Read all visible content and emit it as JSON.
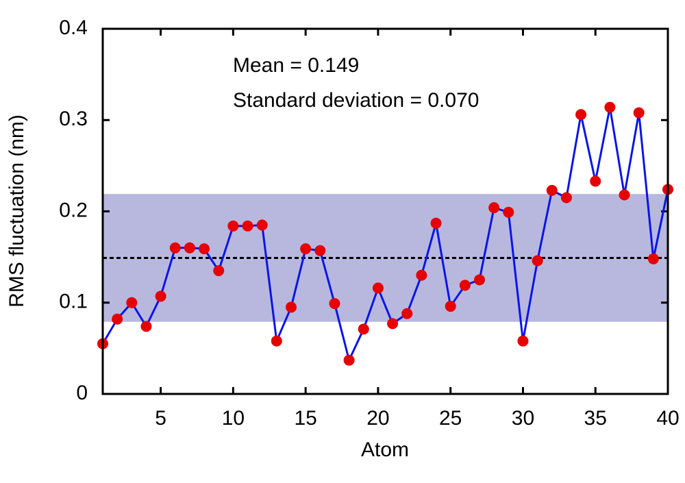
{
  "chart_data": {
    "type": "line",
    "x_label": "Atom",
    "y_label": "RMS fluctuation (nm)",
    "annotations": [
      "Mean = 0.149",
      "Standard deviation = 0.070"
    ],
    "x": [
      1,
      2,
      3,
      4,
      5,
      6,
      7,
      8,
      9,
      10,
      11,
      12,
      13,
      14,
      15,
      16,
      17,
      18,
      19,
      20,
      21,
      22,
      23,
      24,
      25,
      26,
      27,
      28,
      29,
      30,
      31,
      32,
      33,
      34,
      35,
      36,
      37,
      38,
      39,
      40
    ],
    "series": [
      {
        "color": "#0a14e6",
        "marker_color": "#e60000",
        "values": [
          0.055,
          0.082,
          0.1,
          0.074,
          0.107,
          0.16,
          0.16,
          0.159,
          0.135,
          0.184,
          0.184,
          0.185,
          0.058,
          0.095,
          0.159,
          0.157,
          0.099,
          0.037,
          0.071,
          0.116,
          0.077,
          0.088,
          0.13,
          0.187,
          0.096,
          0.119,
          0.125,
          0.204,
          0.199,
          0.058,
          0.146,
          0.223,
          0.215,
          0.306,
          0.233,
          0.314,
          0.218,
          0.308,
          0.148,
          0.224
        ]
      }
    ],
    "mean_line": 0.149,
    "band": [
      0.079,
      0.219
    ],
    "band_color": "#b8b8de",
    "xlim": [
      1,
      40
    ],
    "xticks": [
      5,
      10,
      15,
      20,
      25,
      30,
      35,
      40
    ],
    "ylim": [
      0,
      0.4
    ],
    "yticks": [
      0,
      0.1,
      0.2,
      0.3,
      0.4
    ]
  }
}
